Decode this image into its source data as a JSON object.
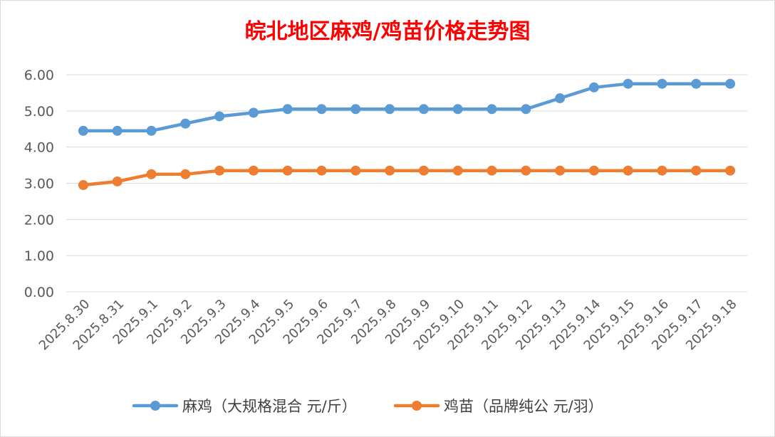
{
  "chart_data": {
    "type": "line",
    "title": "皖北地区麻鸡/鸡苗价格走势图",
    "title_color": "#ff0000",
    "xlabel": "",
    "ylabel": "",
    "categories": [
      "2025.8.30",
      "2025.8.31",
      "2025.9.1",
      "2025.9.2",
      "2025.9.3",
      "2025.9.4",
      "2025.9.5",
      "2025.9.6",
      "2025.9.7",
      "2025.9.8",
      "2025.9.9",
      "2025.9.10",
      "2025.9.11",
      "2025.9.12",
      "2025.9.13",
      "2025.9.14",
      "2025.9.15",
      "2025.9.16",
      "2025.9.17",
      "2025.9.18"
    ],
    "ylim": [
      0,
      6
    ],
    "yticks": [
      "0.00",
      "1.00",
      "2.00",
      "3.00",
      "4.00",
      "5.00",
      "6.00"
    ],
    "grid": true,
    "legend_position": "bottom",
    "series": [
      {
        "name": "麻鸡（大规格混合 元/斤）",
        "color": "#5b9bd5",
        "values": [
          4.45,
          4.45,
          4.45,
          4.65,
          4.85,
          4.95,
          5.05,
          5.05,
          5.05,
          5.05,
          5.05,
          5.05,
          5.05,
          5.05,
          5.35,
          5.65,
          5.75,
          5.75,
          5.75,
          5.75
        ]
      },
      {
        "name": "鸡苗（品牌纯公 元/羽）",
        "color": "#ed7d31",
        "values": [
          2.95,
          3.05,
          3.25,
          3.25,
          3.35,
          3.35,
          3.35,
          3.35,
          3.35,
          3.35,
          3.35,
          3.35,
          3.35,
          3.35,
          3.35,
          3.35,
          3.35,
          3.35,
          3.35,
          3.35
        ]
      }
    ]
  }
}
